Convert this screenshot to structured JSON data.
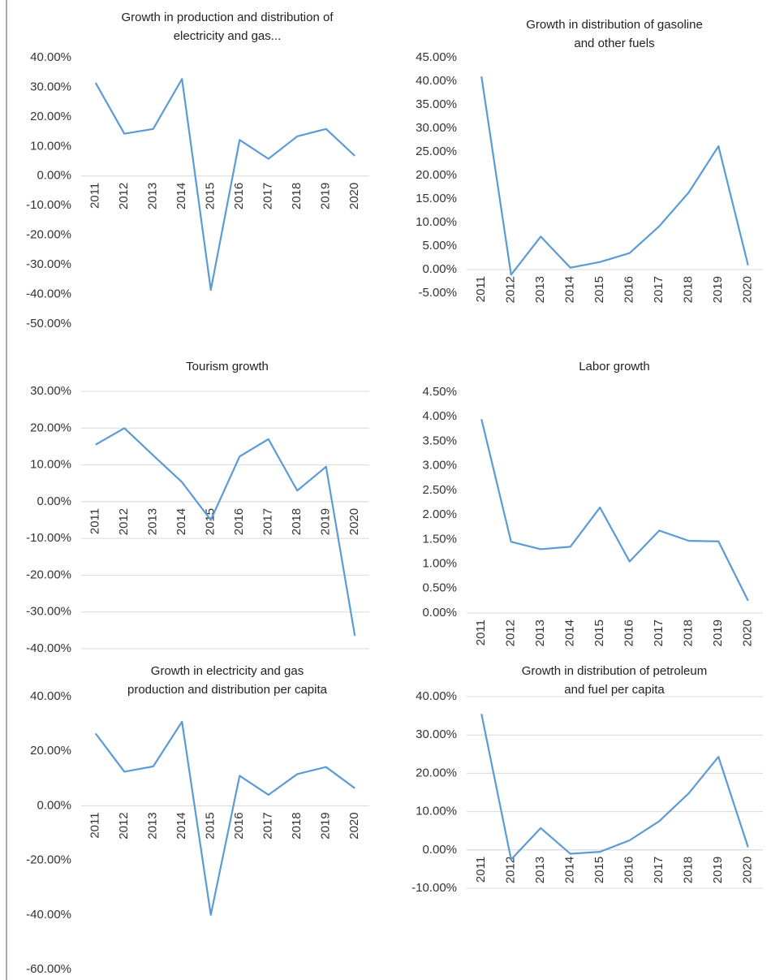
{
  "chart_data": [
    {
      "type": "line",
      "title": [
        "Growth in production and distribution of",
        "electricity and gas..."
      ],
      "categories": [
        "2011",
        "2012",
        "2013",
        "2014",
        "2015",
        "2016",
        "2017",
        "2018",
        "2019",
        "2020"
      ],
      "series": [
        {
          "name": "Growth in production and distribution of electricity and gas",
          "color": "#5b9bd5",
          "values": [
            31.5,
            14.3,
            15.9,
            32.8,
            -38.5,
            12.2,
            5.8,
            13.4,
            15.9,
            6.8
          ]
        }
      ],
      "ylim": [
        -50,
        40
      ],
      "grid": false,
      "yticks": [
        {
          "value": 40,
          "label": "40.00%"
        },
        {
          "value": 30,
          "label": "30.00%"
        },
        {
          "value": 20,
          "label": "20.00%"
        },
        {
          "value": 10,
          "label": "10.00%"
        },
        {
          "value": 0,
          "label": "0.00%"
        },
        {
          "value": -10,
          "label": "-10.00%"
        },
        {
          "value": -20,
          "label": "-20.00%"
        },
        {
          "value": -30,
          "label": "-30.00%"
        },
        {
          "value": -40,
          "label": "-40.00%"
        },
        {
          "value": -50,
          "label": "-50.00%"
        }
      ]
    },
    {
      "type": "line",
      "title": [
        "Growth in distribution of gasoline",
        "and other fuels"
      ],
      "categories": [
        "2011",
        "2012",
        "2013",
        "2014",
        "2015",
        "2016",
        "2017",
        "2018",
        "2019",
        "2020"
      ],
      "series": [
        {
          "name": "Growth in distribution of gasoline and other fuels",
          "color": "#5b9bd5",
          "values": [
            41,
            -1.1,
            7,
            0.4,
            1.6,
            3.5,
            9.2,
            16.4,
            26.2,
            0.9
          ]
        }
      ],
      "ylim": [
        -5,
        45
      ],
      "grid": false,
      "yticks": [
        {
          "value": 45,
          "label": "45.00%"
        },
        {
          "value": 40,
          "label": "40.00%"
        },
        {
          "value": 35,
          "label": "35.00%"
        },
        {
          "value": 30,
          "label": "30.00%"
        },
        {
          "value": 25,
          "label": "25.00%"
        },
        {
          "value": 20,
          "label": "20.00%"
        },
        {
          "value": 15,
          "label": "15.00%"
        },
        {
          "value": 10,
          "label": "10.00%"
        },
        {
          "value": 5,
          "label": "5.00%"
        },
        {
          "value": 0,
          "label": "0.00%"
        },
        {
          "value": -5,
          "label": "-5.00%"
        }
      ]
    },
    {
      "type": "line",
      "title": [
        "Tourism growth"
      ],
      "categories": [
        "2011",
        "2012",
        "2013",
        "2014",
        "2015",
        "2016",
        "2017",
        "2018",
        "2019",
        "2020"
      ],
      "series": [
        {
          "name": "Tourism growth",
          "color": "#5b9bd5",
          "values": [
            15.5,
            20,
            12.6,
            5.3,
            -5,
            12.3,
            17,
            3,
            9.5,
            -36.5
          ]
        }
      ],
      "ylim": [
        -40,
        30
      ],
      "grid": true,
      "yticks": [
        {
          "value": 30,
          "label": "30.00%"
        },
        {
          "value": 20,
          "label": "20.00%"
        },
        {
          "value": 10,
          "label": "10.00%"
        },
        {
          "value": 0,
          "label": "0.00%"
        },
        {
          "value": -10,
          "label": "-10.00%"
        },
        {
          "value": -20,
          "label": "-20.00%"
        },
        {
          "value": -30,
          "label": "-30.00%"
        },
        {
          "value": -40,
          "label": "-40.00%"
        }
      ]
    },
    {
      "type": "line",
      "title": [
        "Labor growth"
      ],
      "categories": [
        "2011",
        "2012",
        "2013",
        "2014",
        "2015",
        "2016",
        "2017",
        "2018",
        "2019",
        "2020"
      ],
      "series": [
        {
          "name": "Labor growth",
          "color": "#5b9bd5",
          "values": [
            3.95,
            1.45,
            1.3,
            1.35,
            2.15,
            1.05,
            1.68,
            1.47,
            1.46,
            0.25
          ]
        }
      ],
      "ylim": [
        0,
        4.5
      ],
      "grid": false,
      "yticks": [
        {
          "value": 4.5,
          "label": "4.50%"
        },
        {
          "value": 4,
          "label": "4.00%"
        },
        {
          "value": 3.5,
          "label": "3.50%"
        },
        {
          "value": 3,
          "label": "3.00%"
        },
        {
          "value": 2.5,
          "label": "2.50%"
        },
        {
          "value": 2,
          "label": "2.00%"
        },
        {
          "value": 1.5,
          "label": "1.50%"
        },
        {
          "value": 1,
          "label": "1.00%"
        },
        {
          "value": 0.5,
          "label": "0.50%"
        },
        {
          "value": 0,
          "label": "0.00%"
        }
      ]
    },
    {
      "type": "line",
      "title": [
        "Growth in electricity and gas",
        "production and distribution per capita"
      ],
      "categories": [
        "2011",
        "2012",
        "2013",
        "2014",
        "2015",
        "2016",
        "2017",
        "2018",
        "2019",
        "2020"
      ],
      "series": [
        {
          "name": "Growth in electricity and gas production and distribution per capita",
          "color": "#5b9bd5",
          "values": [
            26.5,
            12.5,
            14.4,
            30.8,
            -40,
            11,
            4,
            11.6,
            14.2,
            6.4
          ]
        }
      ],
      "ylim": [
        -60,
        40
      ],
      "grid": false,
      "yticks": [
        {
          "value": 40,
          "label": "40.00%"
        },
        {
          "value": 20,
          "label": "20.00%"
        },
        {
          "value": 0,
          "label": "0.00%"
        },
        {
          "value": -20,
          "label": "-20.00%"
        },
        {
          "value": -40,
          "label": "-40.00%"
        },
        {
          "value": -60,
          "label": "-60.00%"
        }
      ]
    },
    {
      "type": "line",
      "title": [
        "Growth in distribution of petroleum",
        "and fuel per capita"
      ],
      "categories": [
        "2011",
        "2012",
        "2013",
        "2014",
        "2015",
        "2016",
        "2017",
        "2018",
        "2019",
        "2020"
      ],
      "series": [
        {
          "name": "Growth in distribution of petroleum and fuel per capita",
          "color": "#5b9bd5",
          "values": [
            35.5,
            -2.5,
            5.7,
            -1,
            -0.5,
            2.5,
            7.5,
            14.8,
            24.3,
            0.7
          ]
        }
      ],
      "ylim": [
        -10,
        40
      ],
      "grid": true,
      "yticks": [
        {
          "value": 40,
          "label": "40.00%"
        },
        {
          "value": 30,
          "label": "30.00%"
        },
        {
          "value": 20,
          "label": "20.00%"
        },
        {
          "value": 10,
          "label": "10.00%"
        },
        {
          "value": 0,
          "label": "0.00%"
        },
        {
          "value": -10,
          "label": "-10.00%"
        }
      ]
    }
  ]
}
